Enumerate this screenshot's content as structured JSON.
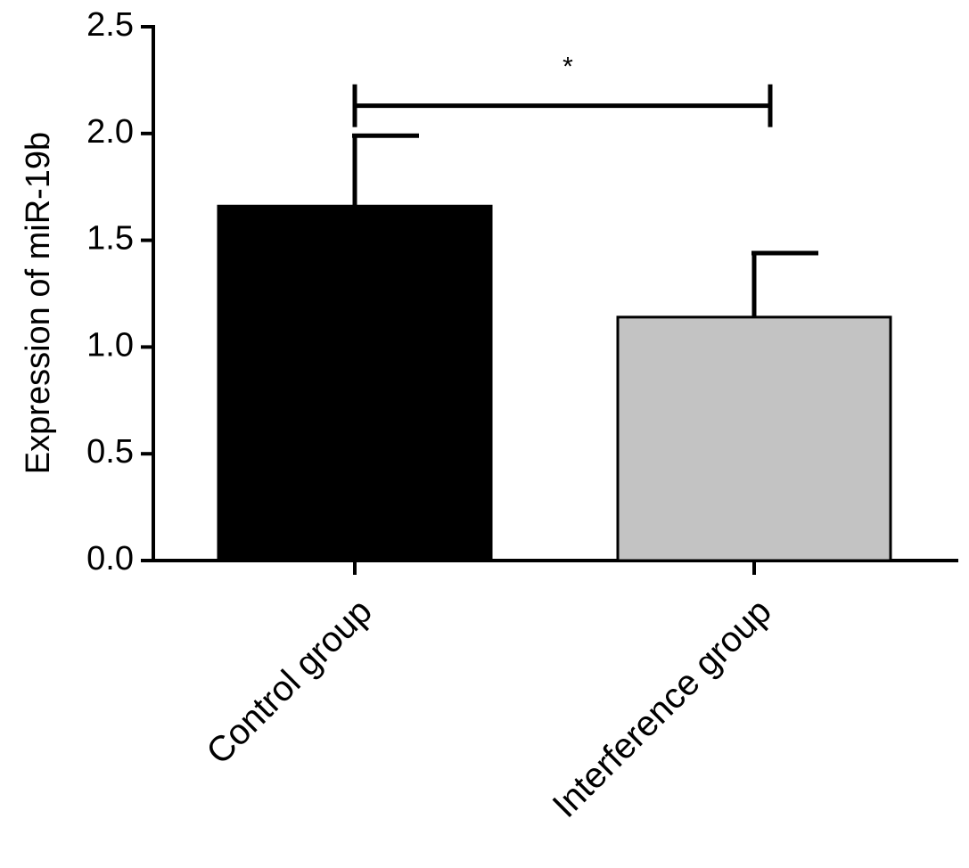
{
  "chart_data": {
    "type": "bar",
    "categories": [
      "Control group",
      "Interference group"
    ],
    "values": [
      1.66,
      1.14
    ],
    "error_upper": [
      0.33,
      0.3
    ],
    "bar_colors": [
      "#000000",
      "#c3c3c3"
    ],
    "ylabel": "Expression of miR-19b",
    "ylim": [
      0,
      2.5
    ],
    "yticks": [
      0.0,
      0.5,
      1.0,
      1.5,
      2.0,
      2.5
    ],
    "ytick_labels": [
      "0.0",
      "0.5",
      "1.0",
      "1.5",
      "2.0",
      "2.5"
    ],
    "significance": {
      "between": [
        0,
        1
      ],
      "label": "*",
      "y": 2.13
    },
    "grid": false,
    "legend": "none"
  }
}
